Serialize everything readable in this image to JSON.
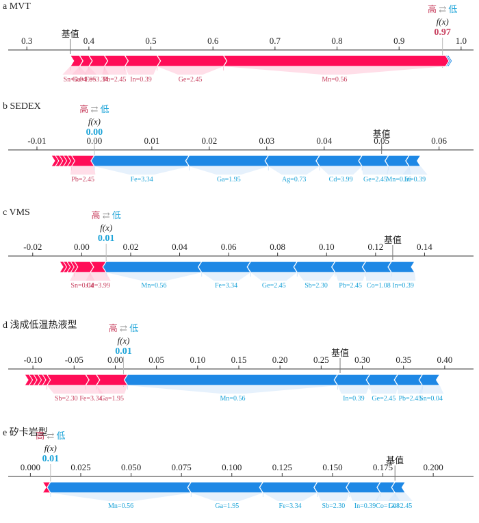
{
  "colors": {
    "high": "#ff0d57",
    "low": "#1e88e5",
    "high_light": "#ffc3d5",
    "low_light": "#d1e6fa",
    "high_text": "#c8405f",
    "low_text": "#1ba3d8"
  },
  "symbols": {
    "high": "高",
    "arrow": "⇄",
    "low": "低",
    "fx": "f(x)",
    "base": "基值"
  },
  "chart_data": [
    {
      "type": "force",
      "title": "a MVT",
      "xlim": [
        0.27,
        1.02
      ],
      "ticks": [
        0.3,
        0.4,
        0.5,
        0.6,
        0.7,
        0.8,
        0.9,
        1.0
      ],
      "tick_labels": [
        "0.3",
        "0.4",
        "0.5",
        "0.6",
        "0.7",
        "0.8",
        "0.9",
        "1.0"
      ],
      "base_value": 0.37,
      "fx": 0.97,
      "fx_label": "0.97",
      "segments": [
        {
          "start": 0.37,
          "end": 0.385,
          "sign": "pos",
          "feature": "Sn=0.04"
        },
        {
          "start": 0.385,
          "end": 0.4,
          "sign": "pos",
          "feature": "Ga=1.95"
        },
        {
          "start": 0.4,
          "end": 0.425,
          "sign": "pos",
          "feature": "Fe=3.34"
        },
        {
          "start": 0.425,
          "end": 0.458,
          "sign": "pos",
          "feature": "Pb=2.45"
        },
        {
          "start": 0.458,
          "end": 0.51,
          "sign": "pos",
          "feature": "In=0.39"
        },
        {
          "start": 0.51,
          "end": 0.617,
          "sign": "pos",
          "feature": "Ge=2.45"
        },
        {
          "start": 0.617,
          "end": 0.975,
          "sign": "pos",
          "feature": "Mn=0.56"
        }
      ],
      "tail": [
        0.975,
        0.98
      ]
    },
    {
      "type": "force",
      "title": "b SEDEX",
      "xlim": [
        -0.015,
        0.066
      ],
      "ticks": [
        -0.01,
        0.0,
        0.01,
        0.02,
        0.03,
        0.04,
        0.05,
        0.06
      ],
      "tick_labels": [
        "-0.01",
        "0.00",
        "0.01",
        "0.02",
        "0.03",
        "0.04",
        "0.05",
        "0.06"
      ],
      "base_value": 0.05,
      "fx": 0.0,
      "fx_label": "0.00",
      "segments": [
        {
          "start": -0.004,
          "end": 0.0,
          "sign": "pos",
          "feature": "Pb=2.45"
        },
        {
          "start": 0.0,
          "end": 0.0165,
          "sign": "neg",
          "feature": "Fe=3.34"
        },
        {
          "start": 0.0165,
          "end": 0.0303,
          "sign": "neg",
          "feature": "Ga=1.95"
        },
        {
          "start": 0.0303,
          "end": 0.0392,
          "sign": "neg",
          "feature": "Ag=0.73"
        },
        {
          "start": 0.0392,
          "end": 0.0466,
          "sign": "neg",
          "feature": "Cd=3.99"
        },
        {
          "start": 0.0466,
          "end": 0.0512,
          "sign": "neg",
          "feature": "Ge=2.45"
        },
        {
          "start": 0.0512,
          "end": 0.0548,
          "sign": "neg",
          "feature": "Mn=0.56"
        },
        {
          "start": 0.0548,
          "end": 0.0568,
          "sign": "neg",
          "feature": "In=0.39"
        }
      ],
      "tail": [
        -0.0075,
        -0.004
      ]
    },
    {
      "type": "force",
      "title": "c VMS",
      "xlim": [
        -0.03,
        0.16
      ],
      "ticks": [
        -0.02,
        0.0,
        0.02,
        0.04,
        0.06,
        0.08,
        0.1,
        0.12,
        0.14
      ],
      "tick_labels": [
        "-0.02",
        "0.00",
        "0.02",
        "0.04",
        "0.06",
        "0.08",
        "0.10",
        "0.12",
        "0.14"
      ],
      "base_value": 0.127,
      "fx": 0.01,
      "fx_label": "0.01",
      "segments": [
        {
          "start": -0.003,
          "end": 0.0035,
          "sign": "pos",
          "feature": "Sn=0.04"
        },
        {
          "start": 0.0035,
          "end": 0.01,
          "sign": "pos",
          "feature": "Cd=3.99"
        },
        {
          "start": 0.01,
          "end": 0.049,
          "sign": "neg",
          "feature": "Mn=0.56"
        },
        {
          "start": 0.049,
          "end": 0.069,
          "sign": "neg",
          "feature": "Fe=3.34"
        },
        {
          "start": 0.069,
          "end": 0.088,
          "sign": "neg",
          "feature": "Ge=2.45"
        },
        {
          "start": 0.088,
          "end": 0.1035,
          "sign": "neg",
          "feature": "Sb=2.30"
        },
        {
          "start": 0.1035,
          "end": 0.116,
          "sign": "neg",
          "feature": "Pb=2.45"
        },
        {
          "start": 0.116,
          "end": 0.1265,
          "sign": "neg",
          "feature": "Co=1.08"
        },
        {
          "start": 0.1265,
          "end": 0.136,
          "sign": "neg",
          "feature": "In=0.39"
        }
      ],
      "tail": [
        -0.009,
        -0.003
      ]
    },
    {
      "type": "force",
      "title": "d 浅成低温热液型",
      "xlim": [
        -0.13,
        0.435
      ],
      "ticks": [
        -0.1,
        -0.05,
        0.0,
        0.05,
        0.1,
        0.15,
        0.2,
        0.25,
        0.3,
        0.35,
        0.4
      ],
      "tick_labels": [
        "-0.10",
        "-0.05",
        "0.00",
        "0.05",
        "0.10",
        "0.15",
        "0.20",
        "0.25",
        "0.30",
        "0.35",
        "0.40"
      ],
      "base_value": 0.273,
      "fx": 0.01,
      "fx_label": "0.01",
      "segments": [
        {
          "start": -0.083,
          "end": -0.036,
          "sign": "pos",
          "feature": "Sb=2.30"
        },
        {
          "start": -0.036,
          "end": -0.023,
          "sign": "pos",
          "feature": "Fe=3.34"
        },
        {
          "start": -0.023,
          "end": 0.015,
          "sign": "pos",
          "feature": "Ga=1.95"
        },
        {
          "start": 0.015,
          "end": 0.27,
          "sign": "neg",
          "feature": "Mn=0.56"
        },
        {
          "start": 0.27,
          "end": 0.309,
          "sign": "neg",
          "feature": "In=0.39"
        },
        {
          "start": 0.309,
          "end": 0.343,
          "sign": "neg",
          "feature": "Ge=2.45"
        },
        {
          "start": 0.343,
          "end": 0.373,
          "sign": "neg",
          "feature": "Pb=2.45"
        },
        {
          "start": 0.373,
          "end": 0.394,
          "sign": "neg",
          "feature": "Sn=0.04"
        }
      ],
      "tail": [
        -0.11,
        -0.083
      ]
    },
    {
      "type": "force",
      "title": "e 矽卡岩型",
      "xlim": [
        -0.011,
        0.22
      ],
      "ticks": [
        0.0,
        0.025,
        0.05,
        0.075,
        0.1,
        0.125,
        0.15,
        0.175,
        0.2
      ],
      "tick_labels": [
        "0.000",
        "0.025",
        "0.050",
        "0.075",
        "0.100",
        "0.125",
        "0.150",
        "0.175",
        "0.200"
      ],
      "base_value": 0.181,
      "fx": 0.01,
      "fx_label": "0.01",
      "segments": [
        {
          "start": 0.006,
          "end": 0.01,
          "sign": "pos",
          "feature": ""
        },
        {
          "start": 0.01,
          "end": 0.0798,
          "sign": "neg",
          "feature": "Mn=0.56"
        },
        {
          "start": 0.0798,
          "end": 0.1155,
          "sign": "neg",
          "feature": "Ga=1.95"
        },
        {
          "start": 0.1155,
          "end": 0.1425,
          "sign": "neg",
          "feature": "Fe=3.34"
        },
        {
          "start": 0.1425,
          "end": 0.1585,
          "sign": "neg",
          "feature": "Sb=2.30"
        },
        {
          "start": 0.1585,
          "end": 0.1738,
          "sign": "neg",
          "feature": "In=0.39"
        },
        {
          "start": 0.1738,
          "end": 0.181,
          "sign": "neg",
          "feature": "Co=1.08"
        },
        {
          "start": 0.181,
          "end": 0.1862,
          "sign": "neg",
          "feature": "Ge=2.45"
        }
      ],
      "tail": [
        0.0055,
        0.006
      ]
    }
  ]
}
